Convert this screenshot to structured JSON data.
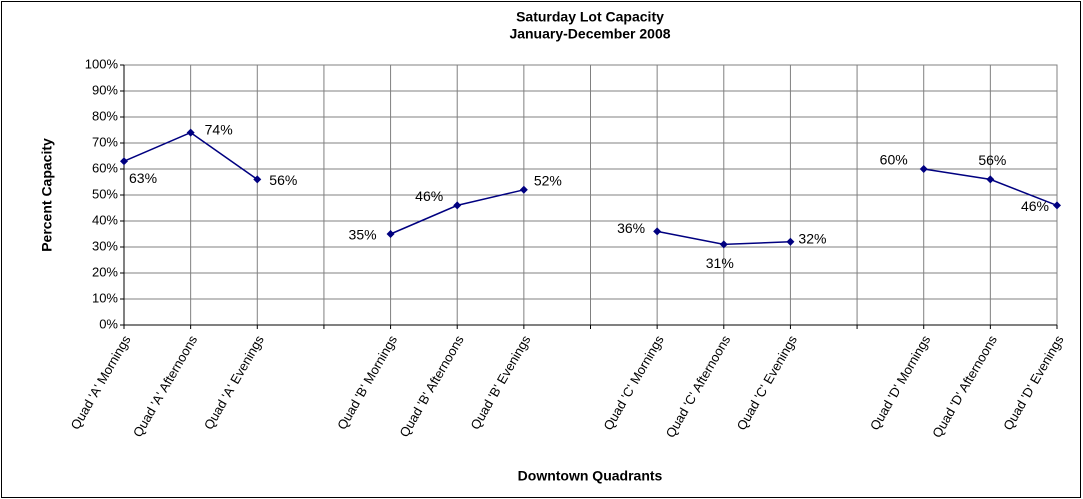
{
  "chart_data": {
    "type": "line",
    "title": "Saturday Lot Capacity",
    "subtitle": "January-December 2008",
    "x_label": "Downtown Quadrants",
    "y_label": "Percent Capacity",
    "categories": [
      "Quad 'A' Mornings",
      "Quad 'A' Afternoons",
      "Quad 'A' Evenings",
      null,
      "Quad 'B' Mornings",
      "Quad 'B' Afternoons",
      "Quad 'B' Evenings",
      null,
      "Quad 'C' Mornings",
      "Quad 'C' Afternoons",
      "Quad 'C' Evenings",
      null,
      "Quad 'D' Mornings",
      "Quad 'D' Afternoons",
      "Quad 'D' Evenings"
    ],
    "series": [
      {
        "color": "#000080",
        "values": [
          63,
          74,
          56,
          null,
          35,
          46,
          52,
          null,
          36,
          31,
          32,
          null,
          60,
          56,
          46
        ],
        "value_labels": [
          "63%",
          "74%",
          "56%",
          null,
          "35%",
          "46%",
          "52%",
          null,
          "36%",
          "31%",
          "32%",
          null,
          "60%",
          "56%",
          "46%"
        ]
      }
    ],
    "ylim": [
      0,
      100
    ],
    "yticks": [
      {
        "value": 0,
        "label": "0%"
      },
      {
        "value": 10,
        "label": "10%"
      },
      {
        "value": 20,
        "label": "20%"
      },
      {
        "value": 30,
        "label": "30%"
      },
      {
        "value": 40,
        "label": "40%"
      },
      {
        "value": 50,
        "label": "50%"
      },
      {
        "value": 60,
        "label": "60%"
      },
      {
        "value": 70,
        "label": "70%"
      },
      {
        "value": 80,
        "label": "80%"
      },
      {
        "value": 90,
        "label": "90%"
      },
      {
        "value": 100,
        "label": "100%"
      }
    ],
    "grid": true
  }
}
